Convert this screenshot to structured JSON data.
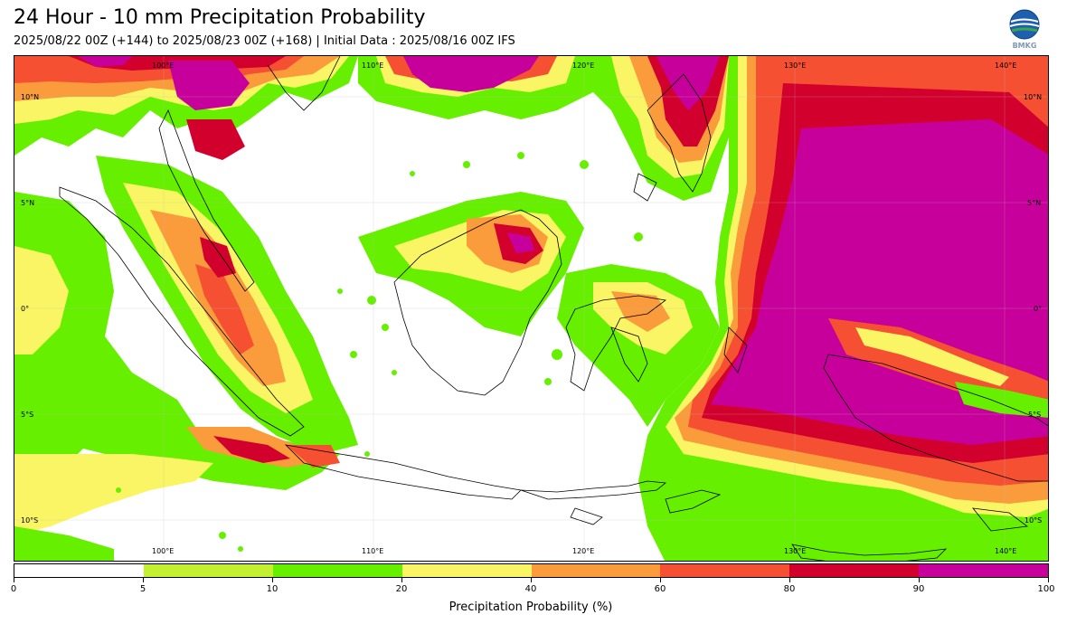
{
  "header": {
    "title": "24 Hour - 10 mm Precipitation Probability",
    "subtitle": "2025/08/22 00Z (+144) to 2025/08/23 00Z (+168) | Initial Data : 2025/08/16 00Z IFS",
    "logo_text": "BMKG"
  },
  "map": {
    "lon_labels_top": [
      "100°E",
      "110°E",
      "120°E",
      "130°E",
      "140°E"
    ],
    "lon_labels_bottom": [
      "100°E",
      "110°E",
      "120°E",
      "130°E",
      "140°E"
    ],
    "lat_labels_left": [
      "10°N",
      "5°N",
      "0°",
      "5°S",
      "10°S"
    ],
    "lat_labels_right": [
      "10°N",
      "5°N",
      "0°",
      "5°S",
      "10°S"
    ]
  },
  "colorbar": {
    "tick_labels": [
      "0",
      "5",
      "10",
      "20",
      "40",
      "60",
      "80",
      "90",
      "100"
    ],
    "colors": [
      "#ffffff",
      "#c4f032",
      "#66f000",
      "#faf564",
      "#fa9b3c",
      "#f55032",
      "#d2002d",
      "#c8009b"
    ],
    "label": "Precipitation Probability (%)"
  },
  "colors": {
    "white": "#ffffff",
    "lime": "#c4f032",
    "green": "#66f000",
    "yellow": "#faf564",
    "orange": "#fa9b3c",
    "red": "#f55032",
    "crimson": "#d2002d",
    "magenta": "#c8009b"
  }
}
